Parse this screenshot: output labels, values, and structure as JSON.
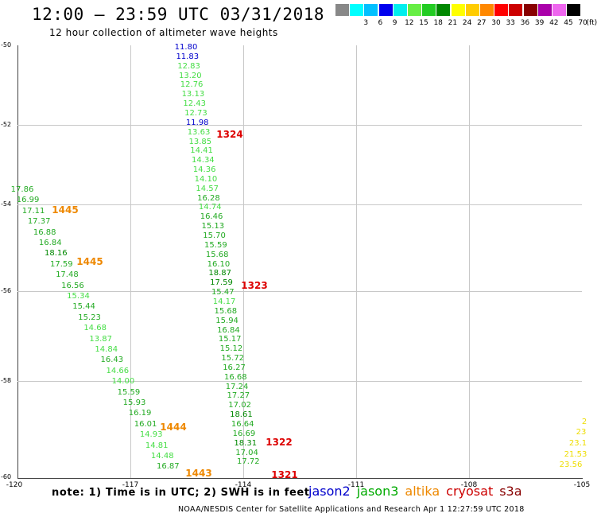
{
  "header": {
    "title": "12:00 – 23:59 UTC 03/31/2018",
    "subtitle": "12 hour collection of altimeter wave heights"
  },
  "legend": {
    "unit": "(ft)",
    "swatches": [
      {
        "label": "",
        "color": "#888888"
      },
      {
        "label": "3",
        "color": "#00ffff"
      },
      {
        "label": "6",
        "color": "#00c0ff"
      },
      {
        "label": "9",
        "color": "#0000ee"
      },
      {
        "label": "12",
        "color": "#00eeee"
      },
      {
        "label": "15",
        "color": "#66ee44"
      },
      {
        "label": "18",
        "color": "#22cc22"
      },
      {
        "label": "21",
        "color": "#008800"
      },
      {
        "label": "24",
        "color": "#ffff00"
      },
      {
        "label": "27",
        "color": "#ffcc00"
      },
      {
        "label": "30",
        "color": "#ff8800"
      },
      {
        "label": "33",
        "color": "#ff0000"
      },
      {
        "label": "36",
        "color": "#cc0000"
      },
      {
        "label": "39",
        "color": "#880000"
      },
      {
        "label": "42",
        "color": "#aa00aa"
      },
      {
        "label": "45",
        "color": "#ee66ee"
      },
      {
        "label": "70",
        "color": "#000000"
      }
    ]
  },
  "axes": {
    "x_ticks": [
      "-120",
      "-117",
      "-114",
      "-111",
      "-108",
      "-105"
    ],
    "y_ticks": [
      "-50",
      "-52",
      "-54",
      "-56",
      "-58",
      "-60"
    ]
  },
  "tracks": [
    {
      "cycle_labels": [
        {
          "text": "1324",
          "color": "#dd0000"
        },
        {
          "text": "1323",
          "color": "#dd0000"
        },
        {
          "text": "1322",
          "color": "#dd0000"
        },
        {
          "text": "1321",
          "color": "#dd0000"
        }
      ],
      "obs": [
        {
          "v": "11.80",
          "c": "#0000cc"
        },
        {
          "v": "11.83",
          "c": "#0000cc"
        },
        {
          "v": "12.83",
          "c": "#44dd44"
        },
        {
          "v": "13.20",
          "c": "#44dd44"
        },
        {
          "v": "12.76",
          "c": "#44dd44"
        },
        {
          "v": "13.13",
          "c": "#44dd44"
        },
        {
          "v": "12.43",
          "c": "#44dd44"
        },
        {
          "v": "12.73",
          "c": "#44dd44"
        },
        {
          "v": "11.98",
          "c": "#0000cc"
        },
        {
          "v": "13.63",
          "c": "#44dd44"
        },
        {
          "v": "13.85",
          "c": "#44dd44"
        },
        {
          "v": "14.41",
          "c": "#44dd44"
        },
        {
          "v": "14.34",
          "c": "#44dd44"
        },
        {
          "v": "14.36",
          "c": "#44dd44"
        },
        {
          "v": "14.10",
          "c": "#44dd44"
        },
        {
          "v": "14.57",
          "c": "#44dd44"
        },
        {
          "v": "16.28",
          "c": "#22aa22"
        },
        {
          "v": "14.74",
          "c": "#44dd44"
        },
        {
          "v": "16.46",
          "c": "#22aa22"
        },
        {
          "v": "15.13",
          "c": "#22aa22"
        },
        {
          "v": "15.70",
          "c": "#22aa22"
        },
        {
          "v": "15.59",
          "c": "#22aa22"
        },
        {
          "v": "15.68",
          "c": "#22aa22"
        },
        {
          "v": "16.10",
          "c": "#22aa22"
        },
        {
          "v": "18.87",
          "c": "#008800"
        },
        {
          "v": "17.59",
          "c": "#008800"
        },
        {
          "v": "15.47",
          "c": "#22aa22"
        },
        {
          "v": "14.17",
          "c": "#44dd44"
        },
        {
          "v": "15.68",
          "c": "#22aa22"
        },
        {
          "v": "15.94",
          "c": "#22aa22"
        },
        {
          "v": "16.84",
          "c": "#22aa22"
        },
        {
          "v": "15.17",
          "c": "#22aa22"
        },
        {
          "v": "15.12",
          "c": "#22aa22"
        },
        {
          "v": "15.72",
          "c": "#22aa22"
        },
        {
          "v": "16.27",
          "c": "#22aa22"
        },
        {
          "v": "16.68",
          "c": "#22aa22"
        },
        {
          "v": "17.24",
          "c": "#22aa22"
        },
        {
          "v": "17.27",
          "c": "#22aa22"
        },
        {
          "v": "17.02",
          "c": "#22aa22"
        },
        {
          "v": "18.61",
          "c": "#008800"
        },
        {
          "v": "16.64",
          "c": "#22aa22"
        },
        {
          "v": "16.69",
          "c": "#22aa22"
        },
        {
          "v": "18.31",
          "c": "#008800"
        },
        {
          "v": "17.04",
          "c": "#22aa22"
        },
        {
          "v": "17.72",
          "c": "#22aa22"
        }
      ]
    },
    {
      "cycle_labels": [
        {
          "text": "1445",
          "color": "#ee8800"
        },
        {
          "text": "1445",
          "color": "#ee8800"
        },
        {
          "text": "1444",
          "color": "#ee8800"
        },
        {
          "text": "1443",
          "color": "#ee8800"
        }
      ],
      "obs": [
        {
          "v": "17.86",
          "c": "#22aa22"
        },
        {
          "v": "16.99",
          "c": "#22aa22"
        },
        {
          "v": "17.11",
          "c": "#22aa22"
        },
        {
          "v": "17.37",
          "c": "#22aa22"
        },
        {
          "v": "16.88",
          "c": "#22aa22"
        },
        {
          "v": "16.84",
          "c": "#22aa22"
        },
        {
          "v": "18.16",
          "c": "#008800"
        },
        {
          "v": "17.59",
          "c": "#22aa22"
        },
        {
          "v": "17.48",
          "c": "#22aa22"
        },
        {
          "v": "16.56",
          "c": "#22aa22"
        },
        {
          "v": "15.34",
          "c": "#44dd44"
        },
        {
          "v": "15.44",
          "c": "#22aa22"
        },
        {
          "v": "15.23",
          "c": "#22aa22"
        },
        {
          "v": "14.68",
          "c": "#44dd44"
        },
        {
          "v": "13.87",
          "c": "#44dd44"
        },
        {
          "v": "14.84",
          "c": "#44dd44"
        },
        {
          "v": "16.43",
          "c": "#22aa22"
        },
        {
          "v": "14.66",
          "c": "#44dd44"
        },
        {
          "v": "14.00",
          "c": "#44dd44"
        },
        {
          "v": "15.59",
          "c": "#22aa22"
        },
        {
          "v": "15.93",
          "c": "#22aa22"
        },
        {
          "v": "16.19",
          "c": "#22aa22"
        },
        {
          "v": "16.01",
          "c": "#22aa22"
        },
        {
          "v": "14.93",
          "c": "#44dd44"
        },
        {
          "v": "14.81",
          "c": "#44dd44"
        },
        {
          "v": "14.48",
          "c": "#44dd44"
        },
        {
          "v": "16.87",
          "c": "#22aa22"
        }
      ]
    },
    {
      "cycle_labels": [],
      "obs": [
        {
          "v": "2",
          "c": "#eedd00"
        },
        {
          "v": "23",
          "c": "#eedd00"
        },
        {
          "v": "23.1",
          "c": "#eedd00"
        },
        {
          "v": "21.53",
          "c": "#eedd00"
        },
        {
          "v": "23.56",
          "c": "#eedd00"
        }
      ]
    }
  ],
  "note": "note: 1) Time is in UTC; 2) SWH is in feet",
  "satellites": [
    {
      "name": "jason2",
      "color": "#0000cc"
    },
    {
      "name": "jason3",
      "color": "#00aa00"
    },
    {
      "name": "altika",
      "color": "#ee8800"
    },
    {
      "name": "cryosat",
      "color": "#cc0000"
    },
    {
      "name": "s3a",
      "color": "#880000"
    }
  ],
  "footer": "NOAA/NESDIS Center for Satellite Applications and Research   Apr  1 12:27:59 UTC 2018"
}
